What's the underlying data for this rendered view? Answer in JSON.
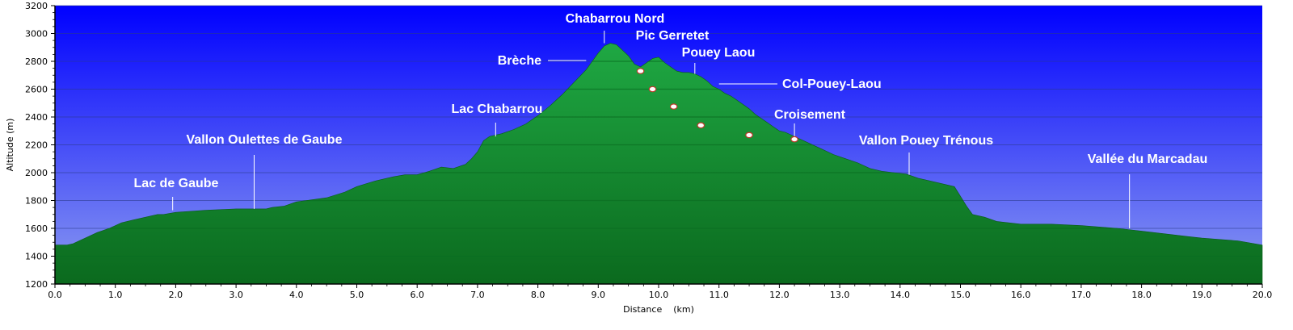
{
  "chart_data": {
    "type": "area",
    "xlabel": "Distance    (km)",
    "ylabel": "Altitude (m)",
    "xlim": [
      0,
      20
    ],
    "ylim": [
      1200,
      3200
    ],
    "x_ticks": [
      0,
      1,
      2,
      3,
      4,
      5,
      6,
      7,
      8,
      9,
      10,
      11,
      12,
      13,
      14,
      15,
      16,
      17,
      18,
      19,
      20
    ],
    "x_tick_labels": [
      "0.0",
      "1.0",
      "2.0",
      "3.0",
      "4.0",
      "5.0",
      "6.0",
      "7.0",
      "8.0",
      "9.0",
      "10.0",
      "11.0",
      "12.0",
      "13.0",
      "14.0",
      "15.0",
      "16.0",
      "17.0",
      "18.0",
      "19.0",
      "20.0"
    ],
    "y_ticks": [
      1200,
      1400,
      1600,
      1800,
      2000,
      2200,
      2400,
      2600,
      2800,
      3000,
      3200
    ],
    "y_tick_labels": [
      "1200",
      "1400",
      "1600",
      "1800",
      "2000",
      "2200",
      "2400",
      "2600",
      "2800",
      "3000",
      "3200"
    ],
    "grid": true,
    "colors": {
      "sky_top": "#0000ff",
      "sky_bottom": "#8c9cf0",
      "fill_top": "#1fa843",
      "fill_bottom": "#0b6a1e",
      "stripe": "#0b6e22",
      "grid": "#2a3a8a"
    },
    "series": [
      {
        "x": [
          0,
          0.2,
          0.3,
          0.4,
          0.5,
          0.7,
          0.9,
          1.0,
          1.1,
          1.3,
          1.5,
          1.7,
          1.8,
          2.0,
          2.5,
          3.0,
          3.5,
          3.6,
          3.8,
          4.0,
          4.5,
          4.8,
          5.0,
          5.3,
          5.6,
          5.8,
          6.0,
          6.2,
          6.4,
          6.6,
          6.8,
          6.9,
          7.0,
          7.1,
          7.2,
          7.4,
          7.6,
          7.8,
          8.0,
          8.2,
          8.4,
          8.6,
          8.8,
          8.9,
          9.0,
          9.1,
          9.2,
          9.3,
          9.4,
          9.5,
          9.6,
          9.7,
          9.8,
          9.9,
          10.0,
          10.1,
          10.2,
          10.3,
          10.4,
          10.5,
          10.6,
          10.7,
          10.8,
          10.9,
          11.0,
          11.1,
          11.2,
          11.3,
          11.4,
          11.5,
          11.6,
          11.7,
          11.8,
          11.9,
          12.0,
          12.1,
          12.2,
          12.3,
          12.5,
          12.7,
          12.9,
          13.1,
          13.3,
          13.5,
          13.7,
          13.9,
          14.1,
          14.3,
          14.6,
          14.9,
          15.0,
          15.1,
          15.2,
          15.4,
          15.6,
          16.0,
          16.5,
          17.0,
          17.3,
          17.6,
          18.0,
          18.4,
          18.8,
          19.0,
          19.3,
          19.6,
          20.0
        ],
        "y": [
          1480,
          1480,
          1490,
          1510,
          1530,
          1570,
          1600,
          1620,
          1640,
          1660,
          1680,
          1700,
          1700,
          1715,
          1730,
          1740,
          1740,
          1750,
          1760,
          1790,
          1820,
          1860,
          1900,
          1940,
          1970,
          1985,
          1985,
          2010,
          2040,
          2030,
          2060,
          2100,
          2150,
          2230,
          2260,
          2280,
          2310,
          2350,
          2410,
          2480,
          2560,
          2650,
          2740,
          2800,
          2860,
          2910,
          2930,
          2920,
          2880,
          2840,
          2780,
          2760,
          2790,
          2820,
          2830,
          2790,
          2760,
          2730,
          2720,
          2720,
          2710,
          2690,
          2660,
          2620,
          2600,
          2570,
          2550,
          2520,
          2490,
          2460,
          2420,
          2390,
          2360,
          2330,
          2300,
          2290,
          2270,
          2250,
          2210,
          2170,
          2130,
          2100,
          2070,
          2030,
          2010,
          2000,
          1990,
          1960,
          1930,
          1900,
          1830,
          1760,
          1700,
          1680,
          1650,
          1630,
          1630,
          1620,
          1610,
          1600,
          1580,
          1560,
          1540,
          1530,
          1520,
          1510,
          1480
        ]
      }
    ],
    "annotations": [
      {
        "text": "Lac de Gaube",
        "x": 1.95,
        "y": 1730
      },
      {
        "text": "Vallon Oulettes de Gaube",
        "x": 3.3,
        "y": 1740
      },
      {
        "text": "Lac Chabarrou",
        "x": 7.3,
        "y": 2260
      },
      {
        "text": "Brèche",
        "x": 8.8,
        "y": 2800
      },
      {
        "text": "Chabarrou Nord",
        "x": 9.1,
        "y": 2930
      },
      {
        "text": "Pic Gerretet",
        "x": 10.0,
        "y": 2830
      },
      {
        "text": "Pouey Laou",
        "x": 10.6,
        "y": 2710
      },
      {
        "text": "Col-Pouey-Laou",
        "x": 11.0,
        "y": 2600
      },
      {
        "text": "Croisement",
        "x": 12.25,
        "y": 2250
      },
      {
        "text": "Vallon Pouey Trénous",
        "x": 14.15,
        "y": 1985
      },
      {
        "text": "Vallée du Marcadau",
        "x": 17.8,
        "y": 1600
      }
    ],
    "waypoints": [
      {
        "x": 9.7,
        "y": 2730
      },
      {
        "x": 9.9,
        "y": 2600
      },
      {
        "x": 10.25,
        "y": 2475
      },
      {
        "x": 10.7,
        "y": 2340
      },
      {
        "x": 11.5,
        "y": 2270
      },
      {
        "x": 12.25,
        "y": 2240
      }
    ]
  }
}
